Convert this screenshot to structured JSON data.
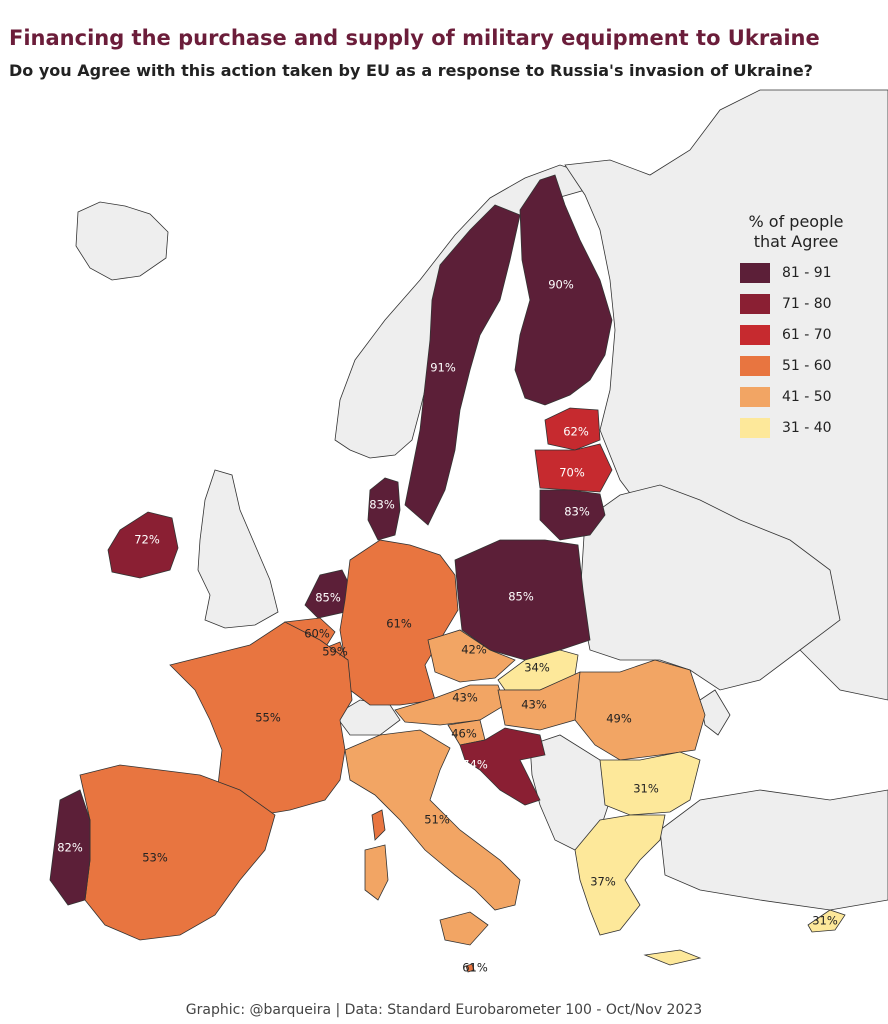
{
  "title": "Financing the purchase and supply of military equipment to Ukraine",
  "subtitle": "Do you Agree with this action taken by EU as a response to Russia's invasion of Ukraine?",
  "legend": {
    "title_line1": "% of people",
    "title_line2": "that Agree",
    "items": [
      {
        "label": "81 - 91",
        "color": "#5c1f38"
      },
      {
        "label": "71 - 80",
        "color": "#8a1f33"
      },
      {
        "label": "61 - 70",
        "color": "#c62a2f"
      },
      {
        "label": "51 - 60",
        "color": "#e87540"
      },
      {
        "label": "41 - 50",
        "color": "#f2a564"
      },
      {
        "label": "31 - 40",
        "color": "#fde89a"
      }
    ]
  },
  "colors": {
    "background_land": "#eeeeee",
    "sea": "#ffffff",
    "border": "#333333"
  },
  "countries": {
    "sweden": {
      "value": "91%"
    },
    "finland": {
      "value": "90%"
    },
    "estonia": {
      "value": "62%"
    },
    "latvia": {
      "value": "70%"
    },
    "lithuania": {
      "value": "83%"
    },
    "denmark": {
      "value": "83%"
    },
    "ireland": {
      "value": "72%"
    },
    "netherlands": {
      "value": "85%"
    },
    "belgium": {
      "value": "60%"
    },
    "luxembourg": {
      "value": "59%"
    },
    "germany": {
      "value": "61%"
    },
    "poland": {
      "value": "85%"
    },
    "czechia": {
      "value": "42%"
    },
    "slovakia": {
      "value": "34%"
    },
    "austria": {
      "value": "43%"
    },
    "hungary": {
      "value": "43%"
    },
    "slovenia": {
      "value": "46%"
    },
    "croatia": {
      "value": "74%"
    },
    "romania": {
      "value": "49%"
    },
    "bulgaria": {
      "value": "31%"
    },
    "france": {
      "value": "55%"
    },
    "spain": {
      "value": "53%"
    },
    "portugal": {
      "value": "82%"
    },
    "italy": {
      "value": "51%"
    },
    "greece": {
      "value": "37%"
    },
    "cyprus": {
      "value": "31%"
    },
    "malta": {
      "value": "61%"
    }
  },
  "footer": "Graphic: @barqueira | Data: Standard Eurobarometer 100 - Oct/Nov 2023"
}
